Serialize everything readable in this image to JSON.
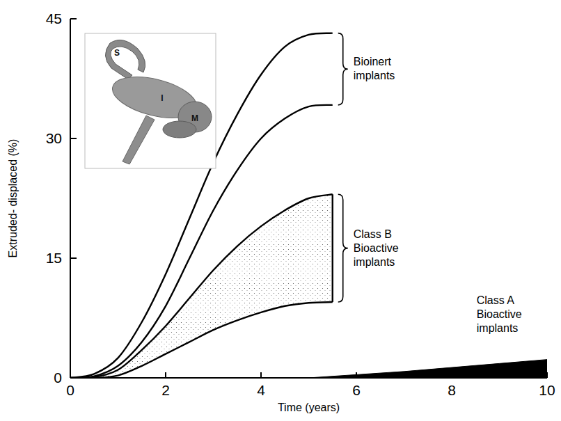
{
  "chart_data": {
    "type": "line",
    "x_label": "Time (years)",
    "y_label": "Extruded- displaced (%)",
    "xlim": [
      0,
      10
    ],
    "ylim": [
      0,
      45
    ],
    "xticks": [
      0,
      2,
      4,
      6,
      8,
      10
    ],
    "yticks": [
      0,
      15,
      30,
      45
    ],
    "grid": false,
    "inset_labels": [
      "S",
      "I",
      "M"
    ],
    "series": [
      {
        "name": "Bioinert implants",
        "type": "lines",
        "color": "#000000",
        "x": [
          0,
          0.5,
          1,
          1.5,
          2,
          2.5,
          3,
          3.5,
          4,
          4.5,
          5,
          5.5
        ],
        "values": [
          0,
          0.5,
          2.5,
          7,
          13,
          20,
          27,
          33,
          38,
          41.5,
          43,
          43.2
        ],
        "lower": [
          0,
          0.2,
          1.5,
          4.5,
          9,
          15,
          21,
          26,
          30,
          32.5,
          34,
          34.2
        ]
      },
      {
        "name": "Class B Bioactive implants",
        "type": "band",
        "color": "#000000",
        "x": [
          0,
          0.5,
          1,
          1.5,
          2,
          2.5,
          3,
          3.5,
          4,
          4.5,
          5,
          5.5
        ],
        "values": [
          0,
          0.1,
          1,
          3.5,
          6.5,
          10,
          13.5,
          16.5,
          19,
          21,
          22.5,
          23
        ],
        "lower": [
          0,
          0,
          0.3,
          1.5,
          3,
          4.5,
          6,
          7.2,
          8.2,
          9,
          9.4,
          9.5
        ]
      },
      {
        "name": "Class A Bioactive implants",
        "type": "area",
        "color": "#000000",
        "x": [
          5,
          6,
          7,
          8,
          9,
          10
        ],
        "values": [
          0,
          0.4,
          0.8,
          1.3,
          1.8,
          2.3
        ]
      }
    ]
  }
}
